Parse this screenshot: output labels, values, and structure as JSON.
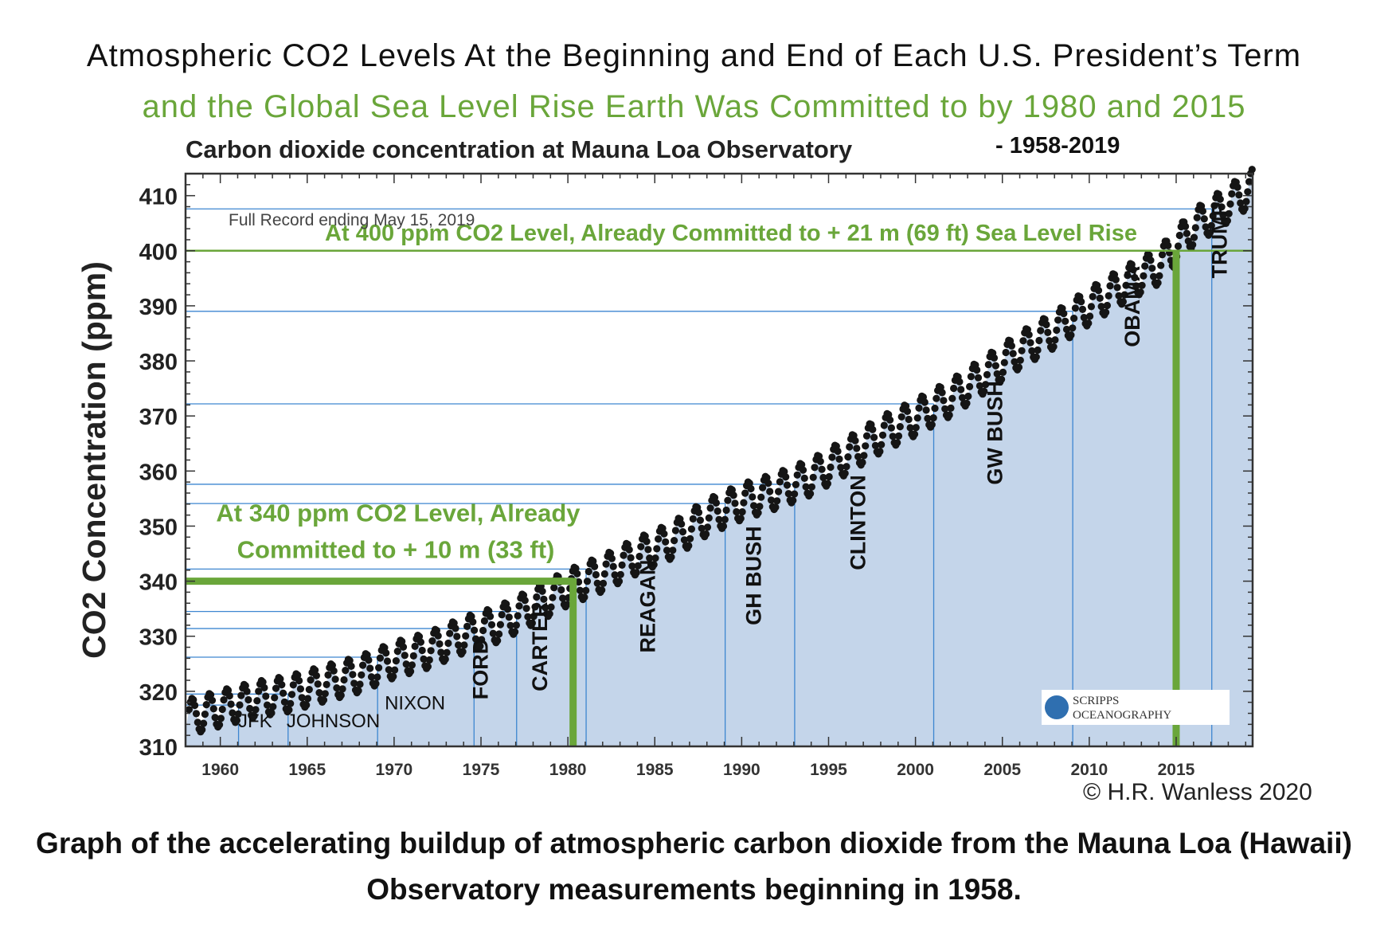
{
  "header": {
    "title_line1": "Atmospheric CO2 Levels At the Beginning and End of Each U.S. President’s Term",
    "title_line2": "and the Global Sea Level Rise Earth Was Committed to by 1980 and 2015",
    "chart_title": "Carbon dioxide concentration at Mauna Loa Observatory",
    "chart_title_suffix": "- 1958-2019"
  },
  "footer": {
    "copyright": "© H.R. Wanless 2020",
    "caption": "Graph of the accelerating buildup of atmospheric carbon dioxide from the Mauna Loa (Hawaii) Observatory measurements beginning in 1958."
  },
  "colors": {
    "fill": "#c4d5ea",
    "presidential_lines": "#3d86d0",
    "threshold_green": "#6aa63a",
    "data_points": "#151515"
  },
  "chart_data": {
    "type": "line",
    "title": "Carbon dioxide concentration at Mauna Loa Observatory",
    "subtitle": "Full Record ending May 15, 2019",
    "ylabel": "CO2 Concentration (ppm)",
    "xlabel": "",
    "xlim": [
      1958,
      2019.4
    ],
    "ylim": [
      310,
      414
    ],
    "x_ticks": [
      1960,
      1965,
      1970,
      1975,
      1980,
      1985,
      1990,
      1995,
      2000,
      2005,
      2010,
      2015
    ],
    "y_ticks": [
      310,
      320,
      330,
      340,
      350,
      360,
      370,
      380,
      390,
      400,
      410
    ],
    "grid": false,
    "series": [
      {
        "x": [
          1958.2,
          1960,
          1962,
          1964,
          1966,
          1968,
          1970,
          1972,
          1974,
          1976,
          1978,
          1980,
          1982,
          1984,
          1986,
          1988,
          1990,
          1992,
          1994,
          1996,
          1998,
          2000,
          2002,
          2004,
          2006,
          2008,
          2010,
          2012,
          2014,
          2016,
          2018,
          2019.4
        ],
        "y": [
          315.3,
          316.9,
          318.5,
          319.6,
          321.4,
          323.1,
          325.7,
          327.5,
          330.2,
          332.2,
          335.4,
          338.8,
          341.4,
          344.6,
          347.4,
          351.6,
          354.4,
          356.4,
          358.9,
          362.6,
          366.6,
          369.7,
          373.2,
          377.5,
          381.9,
          385.6,
          389.9,
          393.8,
          397.2,
          404.2,
          408.5,
          411.6
        ],
        "seasonal_amplitude_ppm": 6.5
      }
    ],
    "presidential_terms": [
      {
        "label": "JFK",
        "start_year": 1961.05,
        "start_ppm": 317.5,
        "label_x": 1962.0,
        "label_y": 313.5
      },
      {
        "label": "JOHNSON",
        "start_year": 1963.9,
        "start_ppm": 319.5,
        "label_x": 1966.5,
        "label_y": 313.5
      },
      {
        "label": "NIXON",
        "start_year": 1969.05,
        "start_ppm": 326.2,
        "label_x": 1971.2,
        "label_y": 316.7
      },
      {
        "label": "FORD",
        "start_year": 1974.6,
        "start_ppm": 331.4,
        "label_x": 1975.4,
        "label_y": 318.5,
        "vertical": true
      },
      {
        "label": "CARTER",
        "start_year": 1977.05,
        "start_ppm": 334.5,
        "label_x": 1978.8,
        "label_y": 320.0,
        "vertical": true
      },
      {
        "label": "REAGAN",
        "start_year": 1981.05,
        "start_ppm": 342.2,
        "label_x": 1985.0,
        "label_y": 327.0,
        "vertical": true
      },
      {
        "label": "GH BUSH",
        "start_year": 1989.05,
        "start_ppm": 354.1,
        "label_x": 1991.1,
        "label_y": 332.0,
        "vertical": true
      },
      {
        "label": "CLINTON",
        "start_year": 1993.05,
        "start_ppm": 357.6,
        "label_x": 1997.1,
        "label_y": 342.0,
        "vertical": true
      },
      {
        "label": "GW BUSH",
        "start_year": 2001.05,
        "start_ppm": 372.2,
        "label_x": 2005.0,
        "label_y": 357.5,
        "vertical": true
      },
      {
        "label": "OBAMA",
        "start_year": 2009.05,
        "start_ppm": 389.0,
        "label_x": 2012.9,
        "label_y": 382.5,
        "vertical": true
      },
      {
        "label": "TRUMP",
        "start_year": 2017.05,
        "start_ppm": 407.6,
        "label_x": 2017.9,
        "label_y": 395.0,
        "vertical": true
      }
    ],
    "thresholds": [
      {
        "ppm": 340,
        "end_year": 1980.3,
        "label_line1": "At 340 ppm CO2 Level, Already",
        "label_line2": "Committed to + 10 m (33 ft)"
      },
      {
        "ppm": 400,
        "year": 2015.0,
        "label": "At 400 ppm CO2 Level, Already Committed to + 21 m (69 ft) Sea Level Rise"
      }
    ],
    "logo_text": [
      "SCRIPPS",
      "OCEANOGRAPHY"
    ]
  }
}
